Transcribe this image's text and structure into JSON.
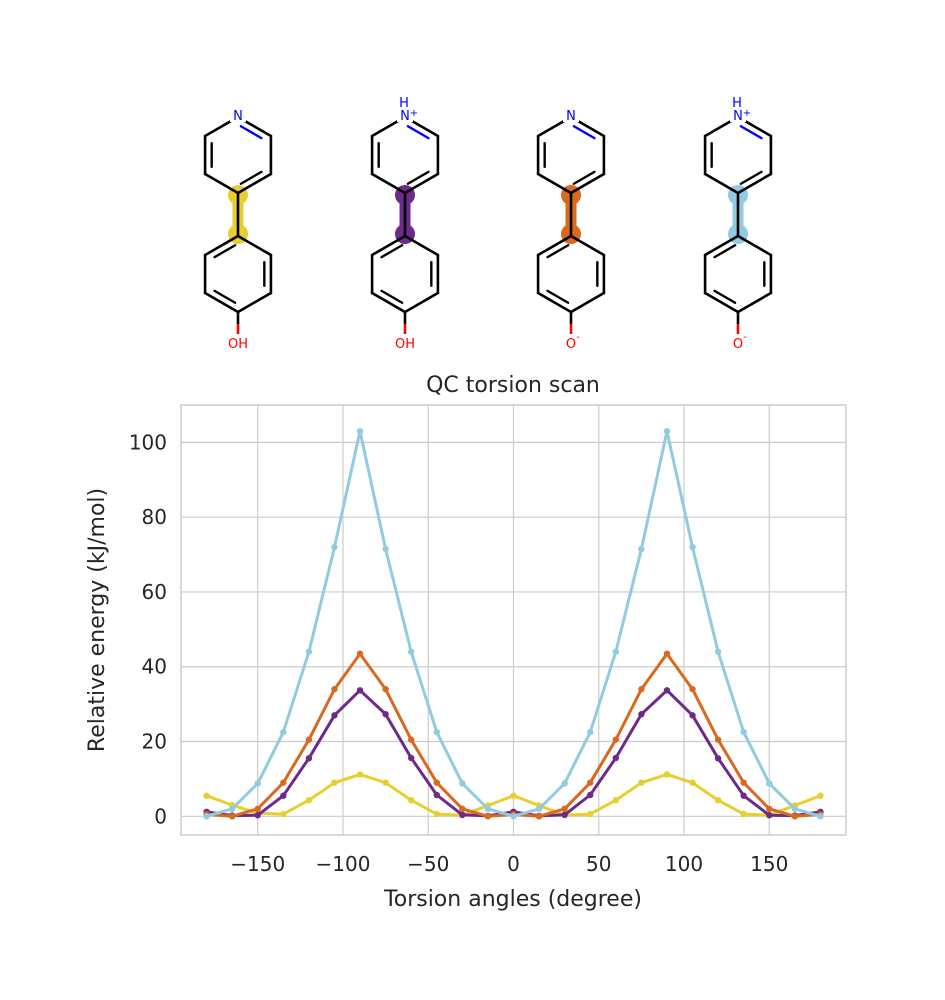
{
  "molecules": [
    {
      "highlight_color": "#e6cf2e",
      "top_atom": "N",
      "top_h": "",
      "top_charge": "",
      "bottom_atom": "OH",
      "bottom_charge": ""
    },
    {
      "highlight_color": "#6d2a8a",
      "top_atom": "N",
      "top_h": "H",
      "top_charge": "+",
      "bottom_atom": "OH",
      "bottom_charge": ""
    },
    {
      "highlight_color": "#d9691e",
      "top_atom": "N",
      "top_h": "",
      "top_charge": "",
      "bottom_atom": "O",
      "bottom_charge": "-"
    },
    {
      "highlight_color": "#92cbe0",
      "top_atom": "N",
      "top_h": "H",
      "top_charge": "+",
      "bottom_atom": "O",
      "bottom_charge": "-"
    }
  ],
  "chart_data": {
    "type": "line",
    "title": "QC torsion scan",
    "xlabel": "Torsion angles (degree)",
    "ylabel": "Relative energy (kJ/mol)",
    "xlim": [
      -195,
      195
    ],
    "ylim": [
      -5,
      110
    ],
    "xticks": [
      -150,
      -100,
      -50,
      0,
      50,
      100,
      150
    ],
    "yticks": [
      0,
      20,
      40,
      60,
      80,
      100
    ],
    "xticklabels": [
      "−150",
      "−100",
      "−50",
      "0",
      "50",
      "100",
      "150"
    ],
    "yticklabels": [
      "0",
      "20",
      "40",
      "60",
      "80",
      "100"
    ],
    "grid": true,
    "x": [
      -180,
      -165,
      -150,
      -135,
      -120,
      -105,
      -90,
      -75,
      -60,
      -45,
      -30,
      -15,
      0,
      15,
      30,
      45,
      60,
      75,
      90,
      105,
      120,
      135,
      150,
      165,
      180
    ],
    "series": [
      {
        "color": "#e6cf2e",
        "values": [
          5.5,
          3.0,
          0.8,
          0.6,
          4.3,
          9.0,
          11.2,
          9.0,
          4.3,
          0.6,
          0.3,
          2.9,
          5.5,
          2.9,
          0.3,
          0.6,
          4.3,
          9.0,
          11.2,
          9.0,
          4.3,
          0.6,
          0.3,
          2.9,
          5.5
        ]
      },
      {
        "color": "#6d2a8a",
        "values": [
          1.2,
          0.2,
          0.3,
          5.5,
          15.5,
          27.0,
          33.7,
          27.3,
          15.6,
          5.7,
          0.4,
          0.1,
          1.2,
          0.1,
          0.4,
          5.7,
          15.6,
          27.3,
          33.7,
          27.0,
          15.5,
          5.5,
          0.3,
          0.2,
          1.2
        ]
      },
      {
        "color": "#d9691e",
        "values": [
          0.5,
          0.0,
          2.0,
          9.0,
          20.5,
          34.0,
          43.5,
          34.0,
          20.5,
          9.0,
          2.0,
          0.0,
          0.5,
          0.0,
          2.0,
          9.0,
          20.5,
          34.0,
          43.5,
          34.0,
          20.5,
          9.0,
          2.0,
          0.0,
          0.5
        ]
      },
      {
        "color": "#92cbe0",
        "values": [
          0.0,
          2.0,
          8.8,
          22.5,
          44.0,
          72.0,
          103.0,
          71.5,
          44.0,
          22.5,
          8.8,
          2.0,
          0.0,
          2.0,
          8.8,
          22.5,
          44.0,
          71.5,
          103.0,
          72.0,
          44.0,
          22.5,
          8.8,
          2.0,
          0.0
        ]
      }
    ]
  }
}
